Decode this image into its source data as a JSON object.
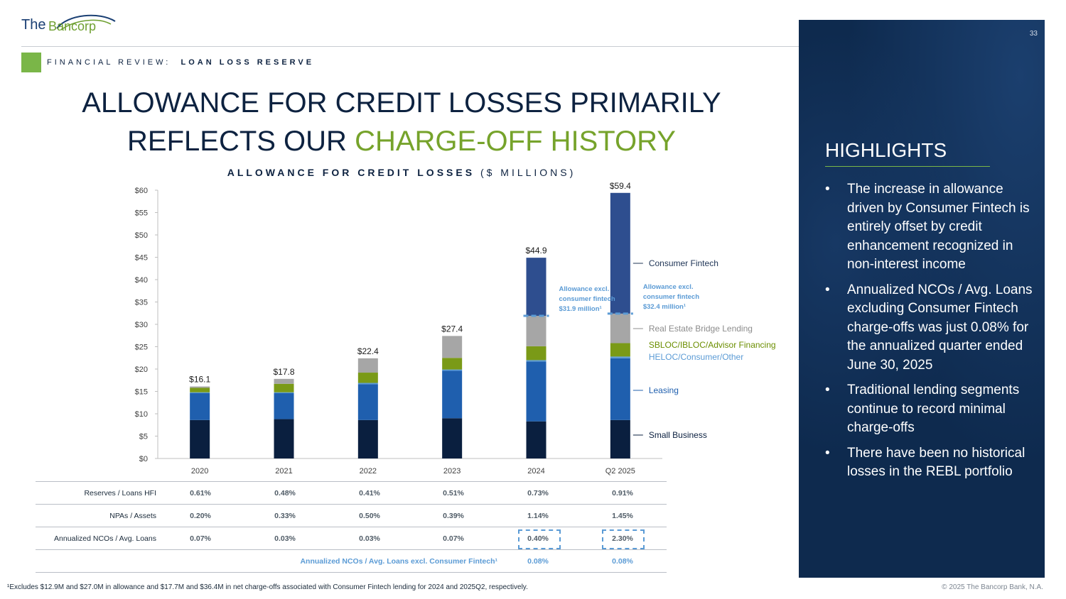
{
  "logo": {
    "word1": "The",
    "word2": "Bancorp"
  },
  "page_number": "33",
  "section": {
    "prefix": "FINANCIAL REVIEW:",
    "name": "LOAN LOSS RESERVE"
  },
  "title": {
    "line1": "ALLOWANCE FOR CREDIT LOSSES PRIMARILY",
    "line2_plain": "REFLECTS OUR",
    "line2_highlight": "CHARGE-OFF HISTORY"
  },
  "chart_heading": {
    "bold": "ALLOWANCE FOR CREDIT LOSSES",
    "unit": "($ MILLIONS)"
  },
  "colors": {
    "small_business": "#0a1f3f",
    "leasing": "#1f5fae",
    "heloc": "#5b9bd5",
    "sbloc": "#7a9a17",
    "rebl": "#a6a6a6",
    "consumer_fintech": "#2e4e8f",
    "accent_green": "#7ab648",
    "panel": "#0e2a4e"
  },
  "chart_data": {
    "type": "bar",
    "stacked": true,
    "title": "ALLOWANCE FOR CREDIT LOSSES ($ MILLIONS)",
    "categories": [
      "2020",
      "2021",
      "2022",
      "2023",
      "2024",
      "Q2 2025"
    ],
    "ylim": [
      0,
      60
    ],
    "yticks": [
      "$0",
      "$5",
      "$10",
      "$15",
      "$20",
      "$25",
      "$30",
      "$35",
      "$40",
      "$45",
      "$50",
      "$55",
      "$60"
    ],
    "series": [
      {
        "name": "Small Business",
        "color": "#0a1f3f",
        "values": [
          8.6,
          8.8,
          8.6,
          9.0,
          8.3,
          8.6
        ]
      },
      {
        "name": "Leasing",
        "color": "#1f5fae",
        "values": [
          6.0,
          5.8,
          8.0,
          10.6,
          13.4,
          13.8
        ]
      },
      {
        "name": "HELOC/Consumer/Other",
        "color": "#5b9bd5",
        "values": [
          0.2,
          0.2,
          0.3,
          0.3,
          0.3,
          0.4
        ]
      },
      {
        "name": "SBLOC/IBLOC/Advisor Financing",
        "color": "#7a9a17",
        "values": [
          1.0,
          1.9,
          2.3,
          2.6,
          3.1,
          3.0
        ]
      },
      {
        "name": "Real Estate Bridge Lending",
        "color": "#a6a6a6",
        "values": [
          0.3,
          1.1,
          3.2,
          4.9,
          6.8,
          6.6
        ]
      },
      {
        "name": "Consumer Fintech",
        "color": "#2e4e8f",
        "values": [
          0,
          0,
          0,
          0,
          13.0,
          27.0
        ]
      }
    ],
    "totals": [
      "$16.1",
      "$17.8",
      "$22.4",
      "$27.4",
      "$44.9",
      "$59.4"
    ],
    "legend": [
      "Consumer Fintech",
      "Real Estate Bridge Lending",
      "SBLOC/IBLOC/Advisor Financing",
      "HELOC/Consumer/Other",
      "Leasing",
      "Small Business"
    ],
    "annotations": [
      {
        "category": "2024",
        "value": 31.9,
        "lines": [
          "Allowance excl.",
          "consumer fintech",
          "$31.9 million¹"
        ]
      },
      {
        "category": "Q2 2025",
        "value": 32.4,
        "lines": [
          "Allowance excl.",
          "consumer fintech",
          "$32.4 million¹"
        ]
      }
    ]
  },
  "table": {
    "rows": [
      {
        "label": "Reserves / Loans HFI",
        "values": [
          "0.61%",
          "0.48%",
          "0.41%",
          "0.51%",
          "0.73%",
          "0.91%"
        ]
      },
      {
        "label": "NPAs / Assets",
        "values": [
          "0.20%",
          "0.33%",
          "0.50%",
          "0.39%",
          "1.14%",
          "1.45%"
        ]
      },
      {
        "label": "Annualized NCOs / Avg. Loans",
        "values": [
          "0.07%",
          "0.03%",
          "0.03%",
          "0.07%",
          "0.40%",
          "2.30%"
        ]
      }
    ],
    "excl_row": {
      "label": "Annualized NCOs / Avg. Loans excl. Consumer Fintech¹",
      "values": [
        "0.08%",
        "0.08%"
      ]
    }
  },
  "highlights": {
    "title": "HIGHLIGHTS",
    "bullets": [
      "The increase in allowance driven by Consumer Fintech is entirely offset by credit enhancement recognized in non-interest income",
      "Annualized NCOs / Avg. Loans excluding Consumer Fintech charge-offs was just 0.08% for the annualized quarter ended June 30, 2025",
      "Traditional lending segments continue to record minimal charge-offs",
      "There have been no historical losses in the REBL portfolio"
    ]
  },
  "footnote": "¹Excludes $12.9M and $27.0M in allowance and $17.7M and $36.4M in net charge-offs associated with Consumer Fintech lending for 2024 and 2025Q2, respectively.",
  "copyright": "© 2025 The Bancorp Bank, N.A."
}
